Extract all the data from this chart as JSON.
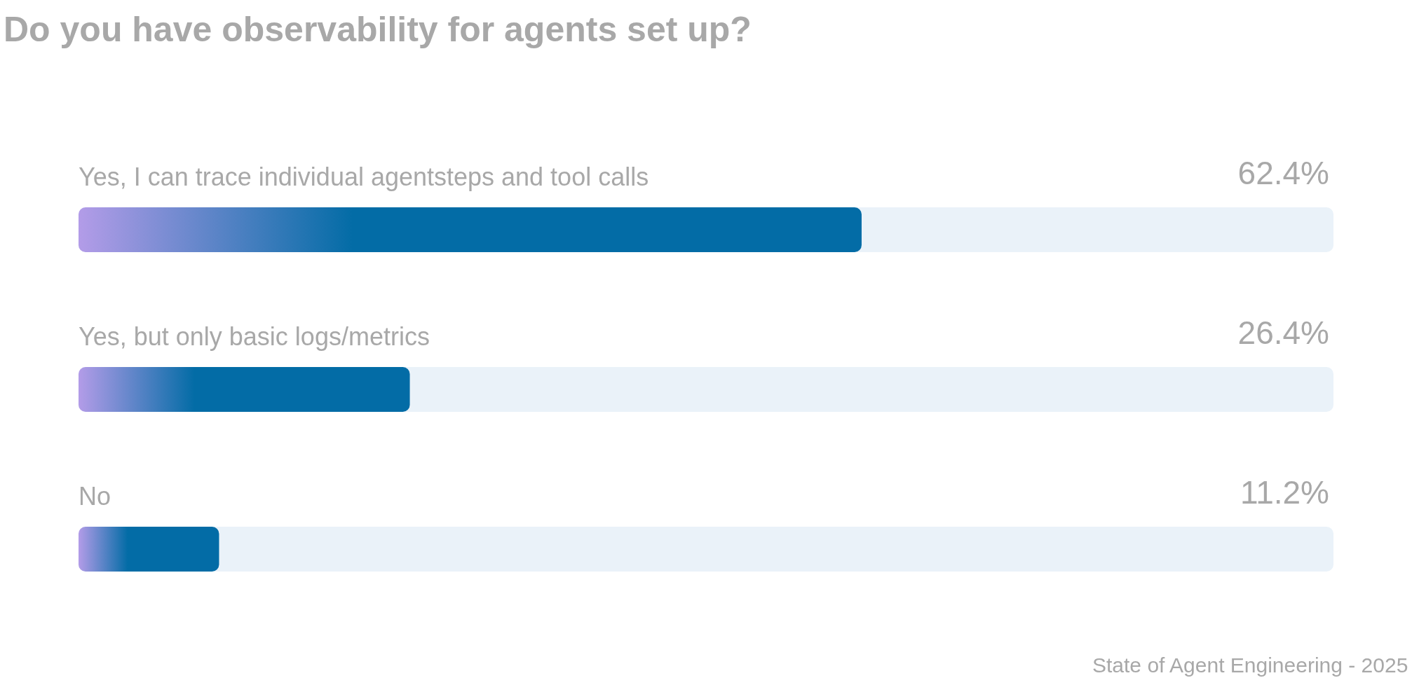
{
  "chart_data": {
    "type": "bar",
    "orientation": "horizontal",
    "title": "Do you have observability for agents set up?",
    "categories": [
      "Yes, I can trace individual agentsteps and tool calls",
      "Yes, but only basic logs/metrics",
      "No"
    ],
    "values": [
      62.4,
      26.4,
      11.2
    ],
    "value_labels": [
      "62.4%",
      "26.4%",
      "11.2%"
    ],
    "color": "#036ca6",
    "annotations": [
      "State of Agent Engineering - 2025"
    ]
  }
}
